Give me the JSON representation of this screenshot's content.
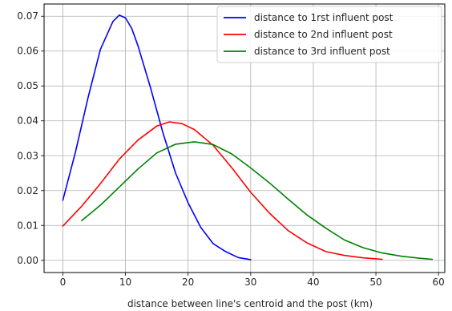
{
  "chart_data": {
    "type": "line",
    "title": "",
    "xlabel": "distance between line's centroid and the post (km)",
    "ylabel": "",
    "xlim": [
      -3,
      61
    ],
    "ylim": [
      -0.0035,
      0.0735
    ],
    "xticks": [
      0,
      10,
      20,
      30,
      40,
      50,
      60
    ],
    "yticks": [
      0.0,
      0.01,
      0.02,
      0.03,
      0.04,
      0.05,
      0.06,
      0.07
    ],
    "ytick_labels": [
      "0.00",
      "0.01",
      "0.02",
      "0.03",
      "0.04",
      "0.05",
      "0.06",
      "0.07"
    ],
    "grid": true,
    "legend_position": "top-right",
    "series": [
      {
        "name": "distance to 1rst influent post",
        "color": "#0000ff",
        "x": [
          0,
          2,
          4,
          6,
          8,
          9,
          10,
          11,
          12,
          14,
          16,
          18,
          20,
          22,
          24,
          26,
          28,
          30
        ],
        "y": [
          0.0172,
          0.031,
          0.0465,
          0.0605,
          0.0685,
          0.0703,
          0.0695,
          0.0665,
          0.0615,
          0.0495,
          0.0365,
          0.025,
          0.0165,
          0.0095,
          0.0048,
          0.0025,
          0.0008,
          0.0002
        ]
      },
      {
        "name": "distance to 2nd influent post",
        "color": "#ff0000",
        "x": [
          0,
          3,
          6,
          9,
          12,
          15,
          17,
          19,
          21,
          24,
          27,
          30,
          33,
          36,
          39,
          42,
          45,
          48,
          51
        ],
        "y": [
          0.0098,
          0.0155,
          0.022,
          0.029,
          0.0345,
          0.0385,
          0.0397,
          0.0392,
          0.0375,
          0.033,
          0.0265,
          0.0195,
          0.0135,
          0.0085,
          0.005,
          0.0025,
          0.0014,
          0.0007,
          0.0003
        ]
      },
      {
        "name": "distance to 3rd influent post",
        "color": "#008000",
        "x": [
          3,
          6,
          9,
          12,
          15,
          18,
          21,
          24,
          27,
          30,
          33,
          36,
          39,
          42,
          45,
          48,
          51,
          54,
          57,
          59
        ],
        "y": [
          0.0114,
          0.0158,
          0.021,
          0.0262,
          0.0308,
          0.0333,
          0.034,
          0.0332,
          0.0305,
          0.0265,
          0.0222,
          0.0175,
          0.013,
          0.0092,
          0.0058,
          0.0036,
          0.0021,
          0.0012,
          0.0006,
          0.0003
        ]
      }
    ]
  }
}
